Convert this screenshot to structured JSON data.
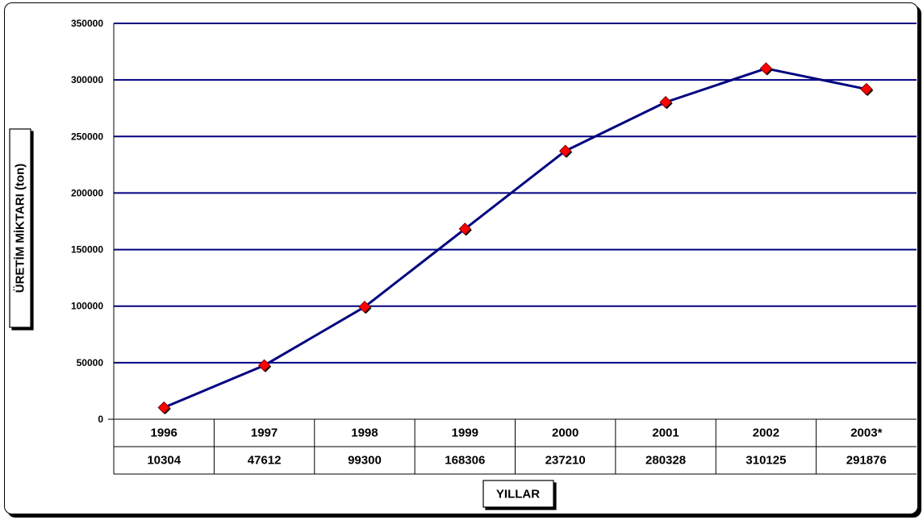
{
  "chart_data": {
    "type": "line",
    "categories": [
      "1996",
      "1997",
      "1998",
      "1999",
      "2000",
      "2001",
      "2002",
      "2003*"
    ],
    "series": [
      {
        "values": [
          10304,
          47612,
          99300,
          168306,
          237210,
          280328,
          310125,
          291876
        ]
      }
    ],
    "data_table_values": [
      "10304",
      "47612",
      "99300",
      "168306",
      "237210",
      "280328",
      "310125",
      "291876"
    ],
    "xlabel": "YILLAR",
    "ylabel": "ÜRETİM MİKTARI (ton)",
    "ylim": [
      0,
      350000
    ],
    "yticks": [
      "0",
      "50000",
      "100000",
      "150000",
      "200000",
      "250000",
      "300000",
      "350000"
    ],
    "grid": true,
    "legend": "none",
    "colors": {
      "line": "#000080",
      "marker": "#ff0000",
      "marker_edge": "#800000",
      "grid": "#000080"
    }
  }
}
